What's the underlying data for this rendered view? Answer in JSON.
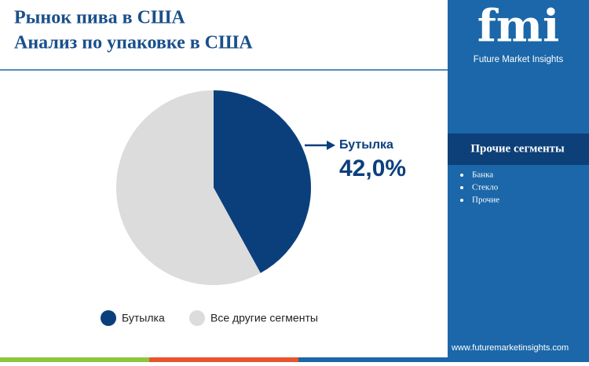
{
  "chart_data": {
    "type": "pie",
    "title": "Рынок пива в США",
    "subtitle": "Анализ по упаковке в США",
    "categories": [
      "Бутылка",
      "Все другие сегменты"
    ],
    "values": [
      42.0,
      58.0
    ],
    "value_labels": [
      "42,0%",
      null
    ],
    "colors": [
      "#0b3f7c",
      "#dcdcdc"
    ]
  },
  "sidebar": {
    "logo": "fmi",
    "brand": "Future Market Insights",
    "heading": "Прочие сегменты",
    "items": [
      "Банка",
      "Стекло",
      "Прочие"
    ],
    "url": "www.futuremarketinsights.com"
  }
}
